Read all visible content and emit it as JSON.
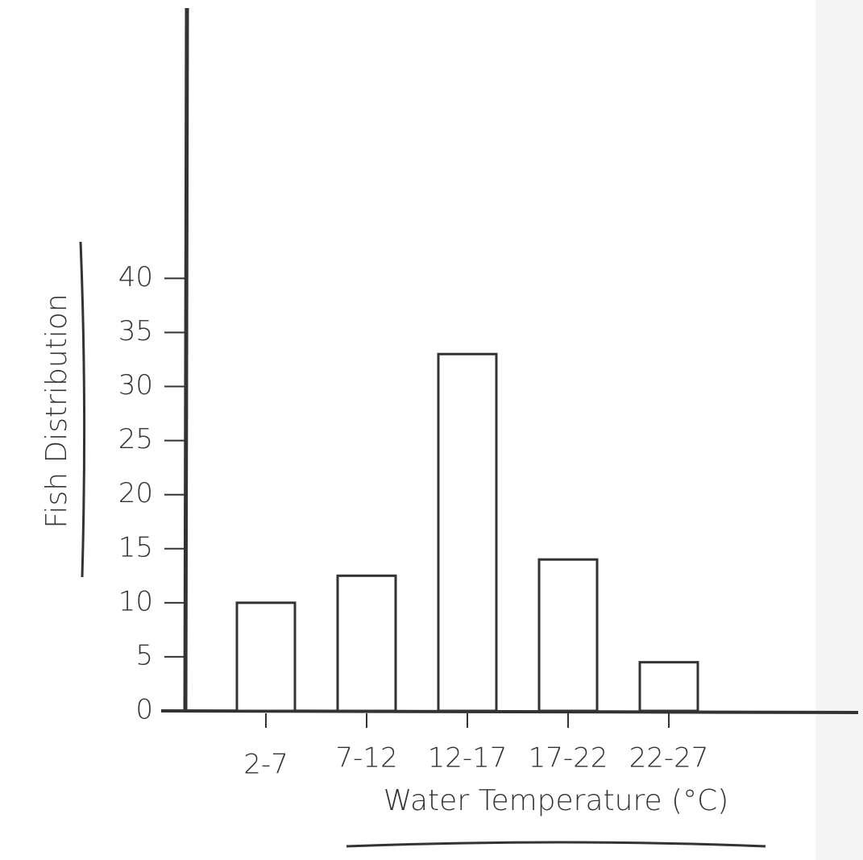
{
  "chart_data": {
    "type": "bar",
    "x_label": "Water Temperature (°C)",
    "y_label": "Fish Distribution",
    "categories": [
      "2-7",
      "7-12",
      "12-17",
      "17-22",
      "22-27"
    ],
    "values": [
      10,
      12.5,
      33,
      14,
      4.5
    ],
    "color": "#ffffff",
    "ylim": [
      0,
      65
    ],
    "yticks": [
      0,
      5,
      10,
      15,
      20,
      25,
      30,
      35,
      40
    ],
    "grid": false
  }
}
